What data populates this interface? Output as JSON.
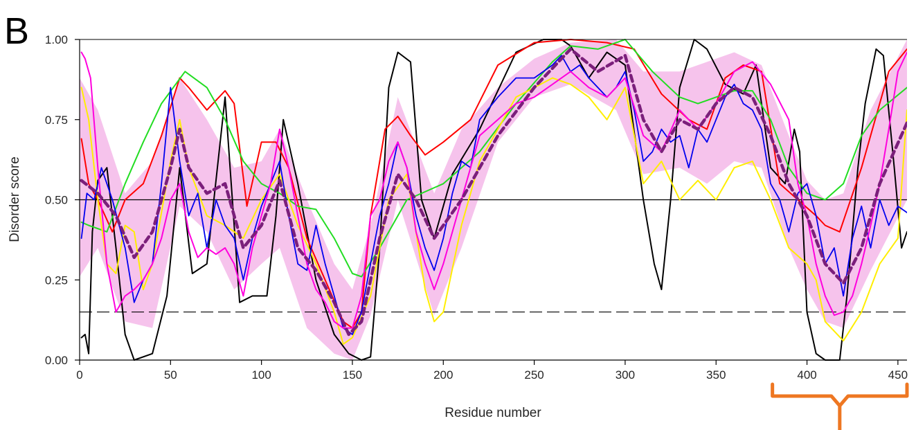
{
  "panel_label": "B",
  "chart_data": {
    "type": "line",
    "title": "",
    "xlabel": "Residue number",
    "ylabel": "Disorder score",
    "xlim": [
      0,
      455
    ],
    "ylim": [
      0,
      1
    ],
    "x_ticks": [
      "0",
      "50",
      "100",
      "150",
      "200",
      "250",
      "300",
      "350",
      "400",
      "450"
    ],
    "y_ticks": [
      "0.00",
      "0.25",
      "0.50",
      "0.75",
      "1.00"
    ],
    "grid": false,
    "reference_lines": [
      {
        "y": 0.5,
        "style": "solid",
        "color": "#000000"
      },
      {
        "y": 0.15,
        "style": "dashed",
        "color": "#000000"
      }
    ],
    "band": {
      "color": "#f4b8e9",
      "x": [
        0,
        10,
        25,
        40,
        55,
        70,
        85,
        100,
        110,
        125,
        140,
        150,
        160,
        175,
        195,
        210,
        230,
        250,
        270,
        295,
        310,
        330,
        345,
        360,
        375,
        390,
        400,
        410,
        420,
        435,
        455
      ],
      "upper": [
        0.88,
        0.78,
        0.52,
        0.62,
        0.88,
        0.75,
        0.6,
        0.62,
        0.72,
        0.5,
        0.3,
        0.22,
        0.42,
        0.82,
        0.52,
        0.72,
        0.85,
        0.94,
        0.99,
        1.0,
        0.9,
        0.9,
        0.93,
        0.96,
        0.92,
        0.7,
        0.56,
        0.5,
        0.52,
        0.78,
        1.0
      ],
      "lower": [
        0.26,
        0.35,
        0.12,
        0.1,
        0.48,
        0.4,
        0.22,
        0.3,
        0.35,
        0.1,
        0.02,
        0.0,
        0.14,
        0.5,
        0.14,
        0.35,
        0.68,
        0.82,
        0.86,
        0.78,
        0.58,
        0.6,
        0.55,
        0.62,
        0.6,
        0.35,
        0.22,
        0.12,
        0.1,
        0.28,
        0.5
      ]
    },
    "series": [
      {
        "color": "#000000",
        "width": 2,
        "dash": "",
        "x": [
          1,
          3,
          5,
          7,
          10,
          15,
          20,
          25,
          30,
          40,
          48,
          55,
          62,
          70,
          80,
          88,
          95,
          103,
          108,
          112,
          120,
          130,
          140,
          148,
          155,
          160,
          165,
          170,
          175,
          182,
          188,
          195,
          205,
          220,
          240,
          255,
          265,
          270,
          280,
          290,
          300,
          310,
          316,
          320,
          325,
          330,
          338,
          345,
          355,
          365,
          372,
          380,
          388,
          393,
          396,
          400,
          405,
          410,
          418,
          422,
          428,
          432,
          438,
          442,
          448,
          452,
          455
        ],
        "y": [
          0.07,
          0.08,
          0.02,
          0.4,
          0.56,
          0.6,
          0.35,
          0.08,
          0.0,
          0.02,
          0.2,
          0.6,
          0.27,
          0.3,
          0.82,
          0.18,
          0.2,
          0.2,
          0.45,
          0.75,
          0.55,
          0.25,
          0.08,
          0.02,
          0.0,
          0.01,
          0.35,
          0.85,
          0.96,
          0.93,
          0.5,
          0.38,
          0.58,
          0.72,
          0.96,
          1.0,
          1.0,
          0.98,
          0.88,
          0.96,
          0.92,
          0.5,
          0.3,
          0.22,
          0.5,
          0.85,
          1.0,
          0.97,
          0.86,
          0.83,
          0.92,
          0.6,
          0.55,
          0.72,
          0.65,
          0.15,
          0.02,
          0.0,
          0.0,
          0.2,
          0.6,
          0.8,
          0.97,
          0.95,
          0.6,
          0.35,
          0.4
        ]
      },
      {
        "color": "#ff0000",
        "width": 2,
        "dash": "",
        "x": [
          1,
          5,
          10,
          18,
          25,
          35,
          45,
          55,
          60,
          70,
          80,
          85,
          92,
          100,
          108,
          115,
          125,
          135,
          145,
          150,
          155,
          160,
          168,
          175,
          182,
          190,
          200,
          215,
          230,
          250,
          270,
          290,
          305,
          320,
          335,
          345,
          355,
          365,
          375,
          385,
          395,
          405,
          410,
          418,
          430,
          445,
          455
        ],
        "y": [
          0.69,
          0.55,
          0.5,
          0.4,
          0.5,
          0.55,
          0.7,
          0.88,
          0.85,
          0.78,
          0.84,
          0.8,
          0.48,
          0.68,
          0.68,
          0.6,
          0.38,
          0.25,
          0.12,
          0.1,
          0.15,
          0.45,
          0.72,
          0.76,
          0.7,
          0.64,
          0.68,
          0.75,
          0.92,
          0.99,
          1.0,
          0.99,
          0.97,
          0.83,
          0.75,
          0.72,
          0.88,
          0.92,
          0.9,
          0.55,
          0.5,
          0.45,
          0.42,
          0.4,
          0.6,
          0.9,
          0.97
        ]
      },
      {
        "color": "#22dd22",
        "width": 2,
        "dash": "",
        "x": [
          1,
          5,
          15,
          25,
          35,
          45,
          58,
          70,
          80,
          90,
          100,
          110,
          120,
          130,
          140,
          150,
          155,
          165,
          180,
          200,
          220,
          240,
          260,
          270,
          285,
          300,
          315,
          330,
          340,
          350,
          360,
          370,
          380,
          390,
          400,
          410,
          420,
          430,
          440,
          455
        ],
        "y": [
          0.43,
          0.42,
          0.4,
          0.55,
          0.68,
          0.8,
          0.9,
          0.85,
          0.75,
          0.62,
          0.55,
          0.52,
          0.48,
          0.47,
          0.38,
          0.27,
          0.26,
          0.35,
          0.5,
          0.55,
          0.65,
          0.8,
          0.93,
          0.98,
          0.97,
          1.0,
          0.9,
          0.82,
          0.8,
          0.82,
          0.84,
          0.84,
          0.75,
          0.6,
          0.52,
          0.5,
          0.55,
          0.7,
          0.78,
          0.85
        ]
      },
      {
        "color": "#ffee00",
        "width": 2,
        "dash": "",
        "x": [
          1,
          5,
          10,
          15,
          20,
          25,
          30,
          35,
          40,
          50,
          55,
          60,
          70,
          80,
          90,
          100,
          110,
          120,
          130,
          140,
          145,
          150,
          160,
          170,
          180,
          190,
          195,
          200,
          210,
          220,
          240,
          260,
          270,
          280,
          290,
          300,
          310,
          320,
          330,
          340,
          350,
          360,
          370,
          380,
          390,
          400,
          405,
          410,
          420,
          430,
          440,
          450,
          455
        ],
        "y": [
          0.85,
          0.75,
          0.5,
          0.3,
          0.27,
          0.42,
          0.4,
          0.22,
          0.3,
          0.62,
          0.75,
          0.6,
          0.45,
          0.42,
          0.38,
          0.5,
          0.58,
          0.42,
          0.3,
          0.15,
          0.05,
          0.07,
          0.2,
          0.5,
          0.58,
          0.22,
          0.12,
          0.15,
          0.42,
          0.62,
          0.82,
          0.88,
          0.86,
          0.82,
          0.75,
          0.85,
          0.55,
          0.62,
          0.5,
          0.56,
          0.5,
          0.6,
          0.62,
          0.5,
          0.35,
          0.3,
          0.25,
          0.12,
          0.06,
          0.15,
          0.3,
          0.38,
          0.78
        ]
      },
      {
        "color": "#0000ee",
        "width": 1.8,
        "dash": "",
        "x": [
          1,
          4,
          8,
          12,
          18,
          25,
          30,
          35,
          40,
          45,
          50,
          55,
          60,
          65,
          70,
          75,
          80,
          85,
          90,
          95,
          100,
          105,
          110,
          115,
          120,
          125,
          130,
          135,
          140,
          145,
          150,
          155,
          160,
          165,
          170,
          175,
          180,
          185,
          190,
          195,
          200,
          205,
          210,
          215,
          220,
          230,
          240,
          250,
          260,
          265,
          270,
          275,
          280,
          285,
          290,
          295,
          300,
          305,
          310,
          315,
          320,
          325,
          330,
          335,
          340,
          345,
          350,
          355,
          360,
          365,
          370,
          375,
          380,
          385,
          390,
          395,
          400,
          405,
          410,
          415,
          420,
          425,
          430,
          435,
          440,
          445,
          450,
          455
        ],
        "y": [
          0.38,
          0.52,
          0.5,
          0.6,
          0.5,
          0.35,
          0.18,
          0.25,
          0.3,
          0.55,
          0.85,
          0.62,
          0.45,
          0.52,
          0.35,
          0.5,
          0.42,
          0.38,
          0.25,
          0.38,
          0.48,
          0.55,
          0.62,
          0.45,
          0.3,
          0.28,
          0.42,
          0.3,
          0.2,
          0.1,
          0.08,
          0.15,
          0.3,
          0.45,
          0.55,
          0.68,
          0.6,
          0.45,
          0.35,
          0.28,
          0.38,
          0.52,
          0.62,
          0.6,
          0.75,
          0.82,
          0.88,
          0.88,
          0.92,
          0.95,
          0.9,
          0.92,
          0.88,
          0.85,
          0.82,
          0.85,
          0.9,
          0.78,
          0.62,
          0.65,
          0.72,
          0.68,
          0.7,
          0.6,
          0.72,
          0.68,
          0.75,
          0.82,
          0.86,
          0.8,
          0.78,
          0.72,
          0.55,
          0.5,
          0.4,
          0.52,
          0.55,
          0.45,
          0.3,
          0.35,
          0.2,
          0.38,
          0.48,
          0.35,
          0.5,
          0.42,
          0.48,
          0.46
        ]
      },
      {
        "color": "#ff00dd",
        "width": 2,
        "dash": "",
        "x": [
          1,
          3,
          6,
          10,
          15,
          20,
          25,
          30,
          35,
          40,
          45,
          50,
          55,
          60,
          65,
          70,
          75,
          80,
          85,
          90,
          95,
          100,
          105,
          110,
          115,
          120,
          125,
          130,
          135,
          140,
          145,
          150,
          155,
          160,
          165,
          170,
          175,
          180,
          185,
          190,
          195,
          200,
          210,
          220,
          230,
          240,
          250,
          260,
          270,
          280,
          290,
          300,
          310,
          320,
          330,
          340,
          350,
          360,
          370,
          380,
          390,
          395,
          400,
          405,
          410,
          415,
          420,
          425,
          430,
          435,
          440,
          445,
          450,
          455
        ],
        "y": [
          0.96,
          0.94,
          0.88,
          0.6,
          0.3,
          0.15,
          0.2,
          0.22,
          0.25,
          0.3,
          0.38,
          0.5,
          0.55,
          0.4,
          0.32,
          0.35,
          0.33,
          0.35,
          0.3,
          0.2,
          0.35,
          0.45,
          0.55,
          0.72,
          0.6,
          0.45,
          0.3,
          0.22,
          0.18,
          0.12,
          0.1,
          0.1,
          0.2,
          0.45,
          0.5,
          0.62,
          0.68,
          0.6,
          0.4,
          0.3,
          0.22,
          0.3,
          0.5,
          0.7,
          0.75,
          0.8,
          0.82,
          0.86,
          0.9,
          0.85,
          0.82,
          0.88,
          0.7,
          0.65,
          0.78,
          0.72,
          0.8,
          0.9,
          0.93,
          0.86,
          0.75,
          0.55,
          0.45,
          0.3,
          0.2,
          0.14,
          0.15,
          0.2,
          0.3,
          0.42,
          0.55,
          0.72,
          0.9,
          0.96
        ]
      },
      {
        "color": "#7b1f7b",
        "width": 4.5,
        "dash": "9 6",
        "x": [
          1,
          10,
          20,
          30,
          40,
          50,
          55,
          60,
          70,
          80,
          90,
          100,
          110,
          120,
          130,
          140,
          148,
          155,
          165,
          175,
          185,
          195,
          210,
          230,
          250,
          270,
          285,
          300,
          310,
          320,
          330,
          340,
          350,
          360,
          370,
          380,
          390,
          400,
          410,
          420,
          430,
          440,
          455
        ],
        "y": [
          0.56,
          0.52,
          0.45,
          0.32,
          0.4,
          0.6,
          0.72,
          0.6,
          0.52,
          0.55,
          0.35,
          0.42,
          0.56,
          0.35,
          0.28,
          0.18,
          0.08,
          0.12,
          0.38,
          0.58,
          0.5,
          0.38,
          0.5,
          0.7,
          0.85,
          0.97,
          0.9,
          0.95,
          0.75,
          0.65,
          0.75,
          0.72,
          0.8,
          0.85,
          0.82,
          0.7,
          0.55,
          0.45,
          0.3,
          0.24,
          0.35,
          0.55,
          0.74
        ]
      }
    ],
    "annotation": {
      "type": "bracket",
      "x_range": [
        381,
        455
      ],
      "color": "#ee7722"
    }
  }
}
